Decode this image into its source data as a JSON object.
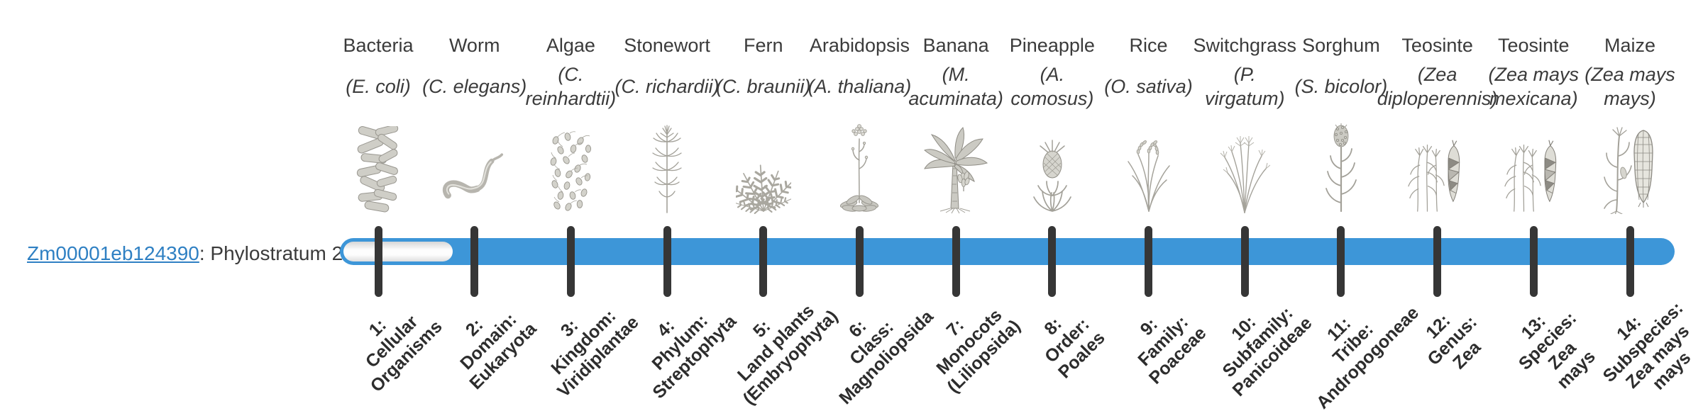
{
  "page": {
    "background": "#ffffff"
  },
  "gene": {
    "id": "Zm00001eb124390",
    "suffix": ": Phylostratum 2",
    "phylostratum": 2
  },
  "timeline": {
    "num_phylostrata": 14,
    "filled_from_phylostratum": 2,
    "bar_color": "#3d96d8",
    "tick_color": "#363636"
  },
  "colors": {
    "link": "#2f80c3",
    "text": "#3b3b3b",
    "tick_label": "#2d2d2d"
  },
  "organisms": [
    {
      "name": "Bacteria",
      "species": "(E. coli)",
      "icon": "bacteria"
    },
    {
      "name": "Worm",
      "species": "(C. elegans)",
      "icon": "worm"
    },
    {
      "name": "Algae",
      "species": "(C.\nreinhardtii)",
      "icon": "algae"
    },
    {
      "name": "Stonewort",
      "species": "(C. richardii)",
      "icon": "stonewort"
    },
    {
      "name": "Fern",
      "species": "(C. braunii)",
      "icon": "fern"
    },
    {
      "name": "Arabidopsis",
      "species": "(A. thaliana)",
      "icon": "arabidopsis"
    },
    {
      "name": "Banana",
      "species": "(M.\nacuminata)",
      "icon": "banana"
    },
    {
      "name": "Pineapple",
      "species": "(A.\ncomosus)",
      "icon": "pineapple"
    },
    {
      "name": "Rice",
      "species": "(O. sativa)",
      "icon": "rice"
    },
    {
      "name": "Switchgrass",
      "species": "(P.\nvirgatum)",
      "icon": "switchgrass"
    },
    {
      "name": "Sorghum",
      "species": "(S. bicolor)",
      "icon": "sorghum"
    },
    {
      "name": "Teosinte",
      "species": "(Zea\ndiploperennis)",
      "icon": "teosinte"
    },
    {
      "name": "Teosinte",
      "species": "(Zea mays\nmexicana)",
      "icon": "teosinte"
    },
    {
      "name": "Maize",
      "species": "(Zea mays\nmays)",
      "icon": "maize"
    }
  ],
  "phylostrata": [
    {
      "label": "1:\nCellular\nOrganisms"
    },
    {
      "label": "2:\nDomain:\nEukaryota"
    },
    {
      "label": "3:\nKingdom:\nViridiplantae"
    },
    {
      "label": "4:\nPhylum:\nStreptophyta"
    },
    {
      "label": "5:\nLand plants\n(Embryophyta)"
    },
    {
      "label": "6:\nClass:\nMagnoliopsida"
    },
    {
      "label": "7:\nMonocots\n(Liliopsida)"
    },
    {
      "label": "8:\nOrder:\nPoales"
    },
    {
      "label": "9:\nFamily:\nPoaceae"
    },
    {
      "label": "10:\nSubfamily:\nPanicoideae"
    },
    {
      "label": "11:\nTribe:\nAndropogoneae"
    },
    {
      "label": "12:\nGenus:\nZea"
    },
    {
      "label": "13:\nSpecies:\nZea\nmays"
    },
    {
      "label": "14:\nSubspecies:\nZea mays\nmays"
    }
  ],
  "chart_data": {
    "type": "bar",
    "orientation": "horizontal",
    "title": "",
    "row_label": "Zm00001eb124390: Phylostratum 2",
    "categories": [
      "1",
      "2",
      "3",
      "4",
      "5",
      "6",
      "7",
      "8",
      "9",
      "10",
      "11",
      "12",
      "13",
      "14"
    ],
    "series": [
      {
        "name": "Zm00001eb124390",
        "filled_strata": [
          0,
          1,
          1,
          1,
          1,
          1,
          1,
          1,
          1,
          1,
          1,
          1,
          1,
          1
        ],
        "bar_span_strata": [
          2,
          14
        ]
      }
    ],
    "x_axis_label": "",
    "y_axis_label": "",
    "grid": false,
    "legend": "none"
  }
}
